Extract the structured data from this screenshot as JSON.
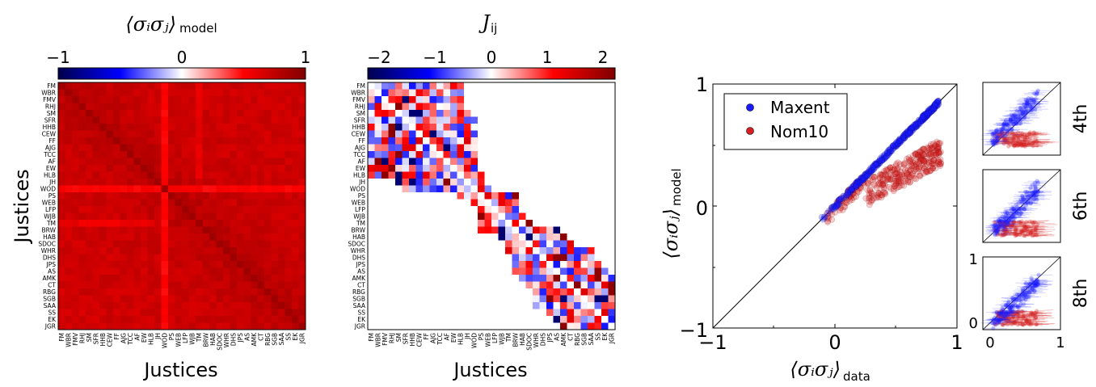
{
  "justices": [
    "FM",
    "WBR",
    "FMV",
    "RHJ",
    "SM",
    "SFR",
    "HHB",
    "CEW",
    "FF",
    "AJG",
    "TCC",
    "AF",
    "EW",
    "HLB",
    "JH",
    "WOD",
    "PS",
    "WEB",
    "LFP",
    "WJB",
    "TM",
    "BRW",
    "HAB",
    "SDOC",
    "WHR",
    "DHS",
    "JPS",
    "AS",
    "AMK",
    "CT",
    "RBG",
    "SGB",
    "SAA",
    "SS",
    "EK",
    "JGR"
  ],
  "chart_data": [
    {
      "type": "heatmap",
      "title_main": "⟨σᵢσⱼ⟩",
      "title_sub": "model",
      "colorbar_ticks": [
        "−1",
        "0",
        "1"
      ],
      "colorbar_range": [
        -1,
        1
      ],
      "xlabel": "Justices",
      "ylabel": "Justices",
      "colormap": "seismic",
      "diagonal_value": 1,
      "note": "matrix of pairwise model correlations among 36 justices; mostly positive (0.3–0.95)"
    },
    {
      "type": "heatmap",
      "title_main": "J",
      "title_sub": "ij",
      "colorbar_ticks": [
        "−2",
        "−1",
        "0",
        "1",
        "2"
      ],
      "colorbar_range": [
        -2.25,
        2.25
      ],
      "xlabel": "Justices",
      "ylabel": "",
      "colormap": "seismic",
      "note": "pairwise couplings, nonzero only for justices serving together (band near diagonal)"
    },
    {
      "type": "scatter",
      "xlabel_main": "⟨σᵢσⱼ⟩",
      "xlabel_sub": "data",
      "ylabel_main": "⟨σᵢσⱼ⟩",
      "ylabel_sub": "model",
      "xlim": [
        -1,
        1
      ],
      "ylim": [
        -1,
        1
      ],
      "xticks": [
        "−1",
        "0",
        "1"
      ],
      "yticks": [
        "−1",
        "0",
        "1"
      ],
      "reference_line": "y = x",
      "legend_position": "top-left",
      "series": [
        {
          "name": "Maxent",
          "color": "#1a1aff",
          "description": "points lie on y = x, x from about −0.1 to 0.85"
        },
        {
          "name": "Nom10",
          "color": "#cc0000",
          "description": "points below y = x for x > 0.3, y ≈ 0.1–0.6"
        }
      ]
    },
    {
      "type": "scatter",
      "panels": [
        {
          "label": "4th"
        },
        {
          "label": "6th"
        },
        {
          "label": "8th",
          "xticks": [
            "0",
            "1"
          ],
          "yticks": [
            "0",
            "1"
          ],
          "xlim": [
            0,
            1
          ],
          "ylim": [
            0,
            1
          ]
        }
      ],
      "series": [
        {
          "name": "Maxent",
          "color": "#1a1aff"
        },
        {
          "name": "Nom10",
          "color": "#cc0000"
        }
      ]
    }
  ],
  "colors": {
    "positive": "#cc0000",
    "negative": "#0000cc",
    "blue_points": "#1a1aff",
    "red_points": "#d42020"
  }
}
